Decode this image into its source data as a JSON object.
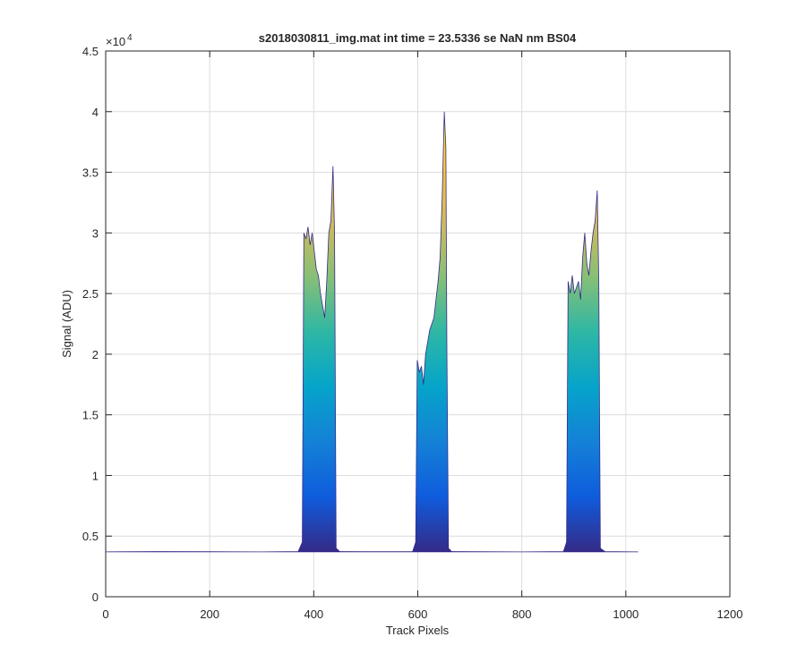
{
  "chart_data": {
    "type": "area",
    "title": "s2018030811_img.mat int time = 23.5336 se  NaN nm BS04",
    "x_label": "Track Pixels",
    "y_label": "Signal (ADU)",
    "y_scale_base": "×10",
    "y_scale_exponent": "4",
    "xlim": [
      0,
      1200
    ],
    "xticks": [
      0,
      200,
      400,
      600,
      800,
      1000,
      1200
    ],
    "ylim": [
      0,
      45000
    ],
    "yticks": [
      0,
      {
        "value": 5000,
        "label": "0.5"
      },
      {
        "value": 10000,
        "label": "1"
      },
      {
        "value": 15000,
        "label": "1.5"
      },
      {
        "value": 20000,
        "label": "2"
      },
      {
        "value": 25000,
        "label": "2.5"
      },
      {
        "value": 30000,
        "label": "3"
      },
      {
        "value": 35000,
        "label": "3.5"
      },
      {
        "value": 40000,
        "label": "4"
      },
      {
        "value": 45000,
        "label": "4.5"
      }
    ],
    "grid": true,
    "colormap": [
      "#352a87",
      "#0f5cdd",
      "#1481d6",
      "#06a4ca",
      "#2eb7a4",
      "#87bf77",
      "#d1bb59",
      "#fec832",
      "#f9fb0e"
    ],
    "x": [
      0,
      100,
      200,
      300,
      370,
      378,
      381,
      385,
      389,
      393,
      397,
      401,
      405,
      409,
      413,
      417,
      421,
      425,
      429,
      433,
      437,
      440,
      443,
      450,
      500,
      590,
      596,
      599,
      603,
      607,
      611,
      615,
      619,
      623,
      627,
      631,
      635,
      639,
      643,
      647,
      651,
      654,
      656,
      659,
      665,
      800,
      880,
      886,
      889,
      893,
      897,
      901,
      905,
      909,
      913,
      917,
      921,
      925,
      929,
      933,
      937,
      941,
      945,
      948,
      951,
      960,
      1024
    ],
    "values": [
      3700,
      3720,
      3710,
      3700,
      3720,
      4500,
      30000,
      29500,
      30500,
      29000,
      30000,
      28500,
      27000,
      26500,
      25000,
      24000,
      23000,
      26000,
      30000,
      31000,
      35500,
      30000,
      4000,
      3720,
      3710,
      3720,
      4500,
      19500,
      18500,
      19000,
      17500,
      20000,
      21000,
      22000,
      22500,
      23000,
      24500,
      26000,
      28000,
      33000,
      40000,
      37000,
      20000,
      4000,
      3720,
      3700,
      3720,
      4500,
      26000,
      25000,
      26500,
      25000,
      25500,
      26000,
      24500,
      28000,
      30000,
      27500,
      26500,
      28500,
      30000,
      31000,
      33500,
      26000,
      4000,
      3720,
      3700
    ]
  }
}
